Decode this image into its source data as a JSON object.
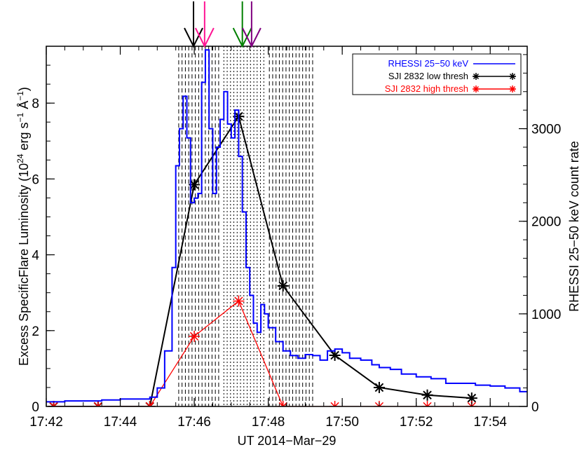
{
  "chart_data": {
    "type": "line",
    "title": "",
    "xlabel": "UT 2014−Mar−29",
    "ylabel_left": "Excess SpecificFlare Luminosity (10",
    "ylabel_left_exp1": "24",
    "ylabel_left_mid": " erg s",
    "ylabel_left_exp2": "−1",
    "ylabel_left_mid2": " Å",
    "ylabel_left_exp3": "−1",
    "ylabel_left_end": ")",
    "ylabel_right": "RHESSI 25−50 keV count rate",
    "x_range_minutes": [
      42,
      55
    ],
    "y_left_range": [
      0,
      9.5
    ],
    "y_right_range": [
      0,
      3890
    ],
    "x_ticks": [
      42,
      44,
      46,
      48,
      50,
      52,
      54
    ],
    "x_tick_labels": [
      "17:42",
      "17:44",
      "17:46",
      "17:48",
      "17:50",
      "17:52",
      "17:54"
    ],
    "y_left_ticks": [
      0,
      2,
      4,
      6,
      8
    ],
    "y_left_tick_labels": [
      "0",
      "2",
      "4",
      "6",
      "8"
    ],
    "y_right_ticks": [
      0,
      1000,
      2000,
      3000
    ],
    "y_right_tick_labels": [
      "0",
      "1000",
      "2000",
      "3000"
    ],
    "legend": {
      "position": "top-right",
      "entries": [
        {
          "label": "RHESSI 25−50 keV",
          "color": "#0000ff",
          "marker": "none"
        },
        {
          "label": "SJI 2832 low thresh",
          "color": "#000000",
          "marker": "asterisk"
        },
        {
          "label": "SJI 2832 high thresh",
          "color": "#ff0000",
          "marker": "asterisk"
        }
      ]
    },
    "series": [
      {
        "name": "SJI 2832 low thresh",
        "color": "#000000",
        "axis": "left",
        "x": [
          42.2,
          43.4,
          44.8,
          46.0,
          47.2,
          48.4,
          49.8,
          51.0,
          52.3,
          53.5
        ],
        "y": [
          0,
          0,
          0,
          5.85,
          7.65,
          3.18,
          1.35,
          0.5,
          0.3,
          0.22
        ]
      },
      {
        "name": "SJI 2832 high thresh",
        "color": "#ff0000",
        "axis": "left",
        "x": [
          42.2,
          43.4,
          44.8,
          46.0,
          47.2,
          48.4,
          49.8,
          51.0,
          52.3,
          53.5
        ],
        "y": [
          0,
          0,
          0,
          1.85,
          2.78,
          0,
          0,
          0,
          0,
          0
        ]
      },
      {
        "name": "RHESSI 25−50 keV",
        "color": "#0000ff",
        "axis": "right",
        "step": true,
        "x": [
          42.0,
          42.5,
          43.0,
          43.5,
          44.0,
          44.5,
          44.8,
          45.0,
          45.2,
          45.4,
          45.5,
          45.6,
          45.7,
          45.8,
          45.9,
          46.0,
          46.1,
          46.2,
          46.3,
          46.4,
          46.5,
          46.6,
          46.7,
          46.8,
          46.9,
          47.0,
          47.1,
          47.2,
          47.3,
          47.4,
          47.5,
          47.6,
          47.7,
          47.8,
          47.9,
          48.0,
          48.2,
          48.4,
          48.6,
          48.8,
          49.0,
          49.2,
          49.4,
          49.6,
          49.8,
          50.0,
          50.2,
          50.5,
          50.8,
          51.0,
          51.3,
          51.6,
          52.0,
          52.4,
          52.8,
          53.2,
          53.6,
          54.0,
          54.4,
          54.8
        ],
        "y": [
          50,
          60,
          60,
          70,
          80,
          80,
          100,
          200,
          600,
          1500,
          2600,
          3000,
          3350,
          2900,
          2200,
          2250,
          2300,
          3500,
          3850,
          3000,
          2300,
          2800,
          3100,
          3400,
          3050,
          2900,
          3200,
          2700,
          2100,
          1500,
          1200,
          900,
          800,
          1100,
          1000,
          850,
          700,
          600,
          550,
          520,
          560,
          550,
          500,
          600,
          620,
          580,
          520,
          500,
          450,
          420,
          400,
          350,
          320,
          300,
          250,
          250,
          230,
          220,
          200,
          160
        ]
      }
    ],
    "arrows": [
      {
        "x": 45.98,
        "color": "#000000"
      },
      {
        "x": 46.28,
        "color": "#ff1493"
      },
      {
        "x": 47.3,
        "color": "#008000"
      },
      {
        "x": 47.55,
        "color": "#800080"
      }
    ],
    "vlines_dashed": [
      45.58,
      45.67,
      45.76,
      45.85,
      45.94,
      46.03,
      46.12,
      46.21,
      46.3,
      46.39,
      46.48,
      46.57,
      46.66,
      48.03,
      48.12,
      48.21,
      48.3,
      48.39,
      48.48,
      48.57,
      48.66,
      48.75,
      48.84,
      48.93,
      49.02,
      49.11,
      49.2
    ],
    "vlines_dotted": [
      46.8,
      46.89,
      46.98,
      47.07,
      47.16,
      47.25,
      47.34,
      47.43,
      47.52,
      47.61,
      47.7,
      47.79,
      47.88
    ]
  }
}
